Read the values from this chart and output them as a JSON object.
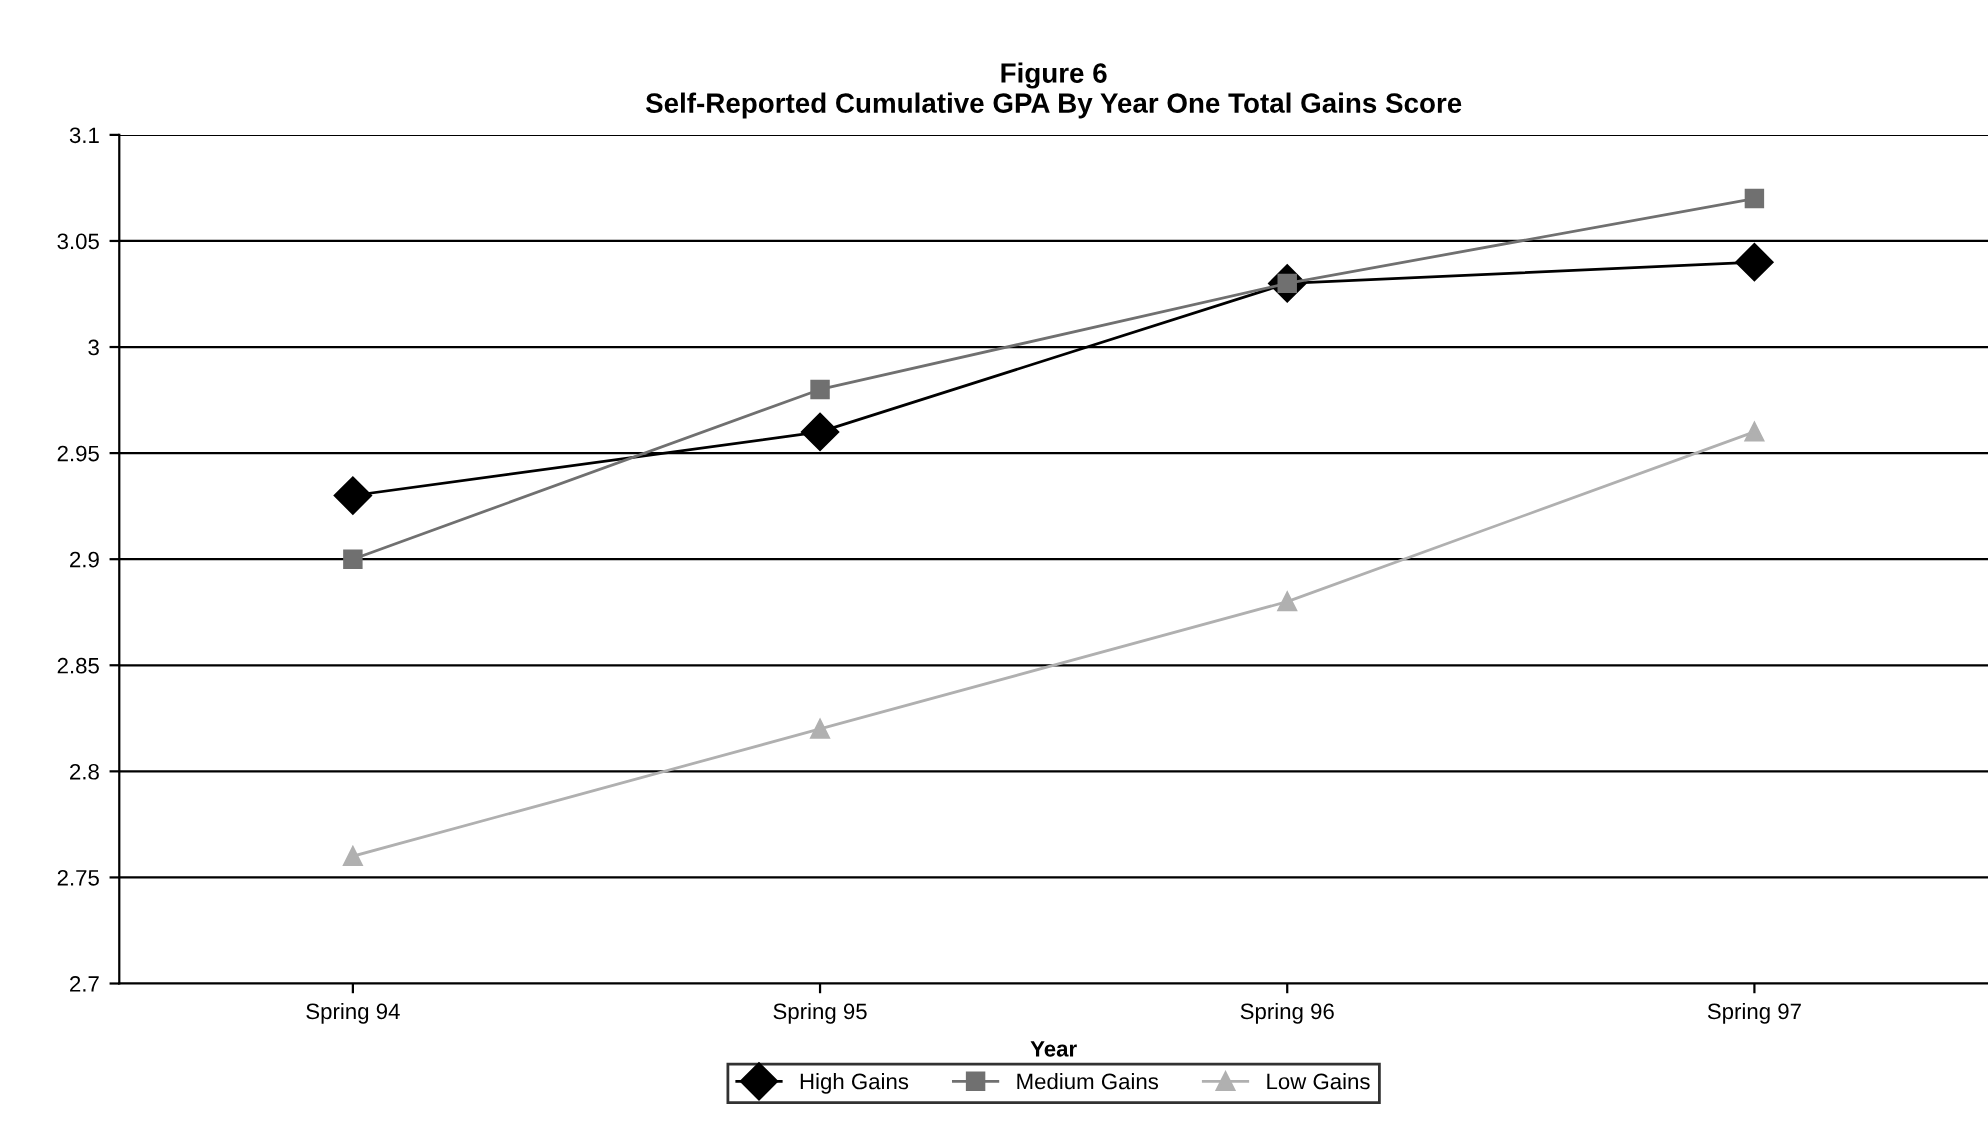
{
  "chart_data": {
    "type": "line",
    "title": "Figure 6\nSelf-Reported Cumulative GPA By Year One Total Gains Score",
    "xlabel": "Year",
    "categories": [
      "Spring 94",
      "Spring 95",
      "Spring 96",
      "Spring 97"
    ],
    "series": [
      {
        "name": "High Gains",
        "color": "#000000",
        "marker": "diamond",
        "values": [
          2.93,
          2.96,
          3.03,
          3.04
        ]
      },
      {
        "name": "Medium Gains",
        "color": "#707070",
        "marker": "square",
        "values": [
          2.9,
          2.98,
          3.03,
          3.07
        ]
      },
      {
        "name": "Low Gains",
        "color": "#b0b0b0",
        "marker": "triangle",
        "values": [
          2.76,
          2.82,
          2.88,
          2.96
        ]
      }
    ],
    "ylim": [
      2.7,
      3.1
    ],
    "yticks": [
      2.7,
      2.75,
      2.8,
      2.85,
      2.9,
      2.95,
      3,
      3.05,
      3.1
    ],
    "grid": "y",
    "legend": "bottom"
  }
}
